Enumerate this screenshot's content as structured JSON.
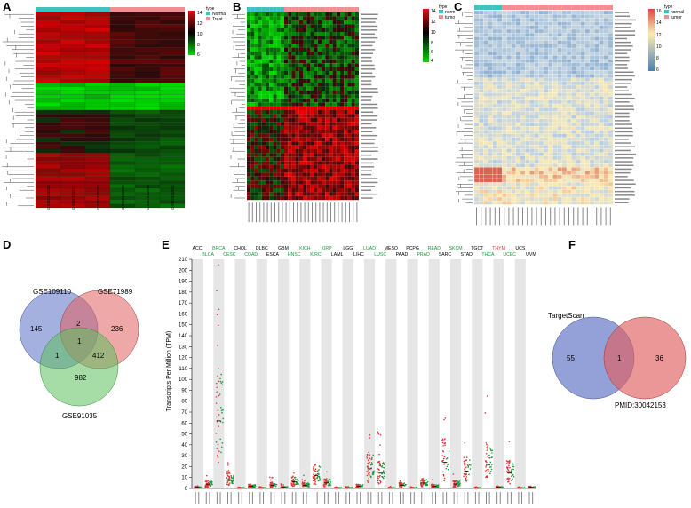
{
  "panels": {
    "A": {
      "label": "A"
    },
    "B": {
      "label": "B"
    },
    "C": {
      "label": "C"
    },
    "D": {
      "label": "D"
    },
    "E": {
      "label": "E"
    },
    "F": {
      "label": "F"
    }
  },
  "colors": {
    "heat_red": "#d7191c",
    "heat_black": "#000000",
    "heat_green": "#1fae1f",
    "teal": "#3ec1c1",
    "salmon": "#f08f8f",
    "blue_low": "#4a7fb5",
    "yellow_high": "#fdebb0",
    "red_high": "#d94a3d",
    "venn_blue": "#5a6fc4",
    "venn_red": "#e06060",
    "venn_green": "#5cbf5c"
  },
  "chart_data": [
    {
      "panel": "A",
      "type": "heatmap",
      "legend_title": "type",
      "groups": [
        "Normal",
        "Treat"
      ],
      "scale_ticks": [
        "14",
        "12",
        "10",
        "8",
        "6"
      ],
      "samples": [
        "GSM2331826",
        "GSM2331827",
        "GSM2331828",
        "GSM2331839",
        "GSM2331840",
        "GSM2331841"
      ]
    },
    {
      "panel": "B",
      "type": "heatmap",
      "legend_title": "type",
      "groups": [
        "normal",
        "tumor"
      ],
      "scale_ticks": [
        "14",
        "12",
        "10",
        "8",
        "6",
        "4"
      ]
    },
    {
      "panel": "C",
      "type": "heatmap",
      "legend_title": "type",
      "groups": [
        "normal",
        "tumor"
      ],
      "scale_ticks": [
        "16",
        "14",
        "12",
        "10",
        "8",
        "6"
      ]
    },
    {
      "panel": "D",
      "type": "venn",
      "sets": [
        "GSE109110",
        "GSE71989",
        "GSE91035"
      ],
      "regions": {
        "only_1": 145,
        "only_2": 236,
        "only_3": 982,
        "s12": 2,
        "s13": 1,
        "s23": 412,
        "s123": 1
      }
    },
    {
      "panel": "E",
      "type": "scatter",
      "ylabel": "Transcripts Per Million (TPM)",
      "yticks": [
        0,
        10,
        20,
        30,
        40,
        50,
        60,
        70,
        80,
        90,
        100,
        110,
        120,
        130,
        140,
        150,
        160,
        170,
        180,
        190,
        200,
        210
      ],
      "ylim": [
        0,
        210
      ],
      "cancers": [
        "ACC",
        "BLCA",
        "BRCA",
        "CESC",
        "CHOL",
        "COAD",
        "DLBC",
        "ESCA",
        "GBM",
        "HNSC",
        "KICH",
        "KIRC",
        "KIRP",
        "LAML",
        "LGG",
        "LIHC",
        "LUAD",
        "LUSC",
        "MESO",
        "PAAD",
        "PCPG",
        "PRAD",
        "READ",
        "SARC",
        "SKCM",
        "STAD",
        "TGCT",
        "THCA",
        "THYM",
        "UCEC",
        "UCS",
        "UVM"
      ],
      "cancer_colors": [
        "#000000",
        "#1a9a3a",
        "#1a9a3a",
        "#1a9a3a",
        "#000000",
        "#1a9a3a",
        "#000000",
        "#000000",
        "#000000",
        "#1a9a3a",
        "#1a9a3a",
        "#1a9a3a",
        "#1a9a3a",
        "#000000",
        "#000000",
        "#000000",
        "#1a9a3a",
        "#1a9a3a",
        "#000000",
        "#000000",
        "#000000",
        "#1a9a3a",
        "#1a9a3a",
        "#000000",
        "#1a9a3a",
        "#000000",
        "#000000",
        "#1a9a3a",
        "#e3342f",
        "#1a9a3a",
        "#000000",
        "#000000"
      ],
      "medians": [
        1,
        4,
        62,
        8,
        0.5,
        2,
        0.5,
        3,
        1,
        6,
        3,
        12,
        5,
        0.5,
        0.5,
        2,
        18,
        14,
        0.5,
        3,
        0.5,
        5,
        2,
        24,
        4,
        16,
        0.5,
        22,
        1,
        14,
        0.5,
        1
      ]
    },
    {
      "panel": "F",
      "type": "venn",
      "sets": [
        "TargetScan",
        "PMID:30042153"
      ],
      "regions": {
        "only_1": 55,
        "s12": 1,
        "only_2": 36
      }
    }
  ]
}
